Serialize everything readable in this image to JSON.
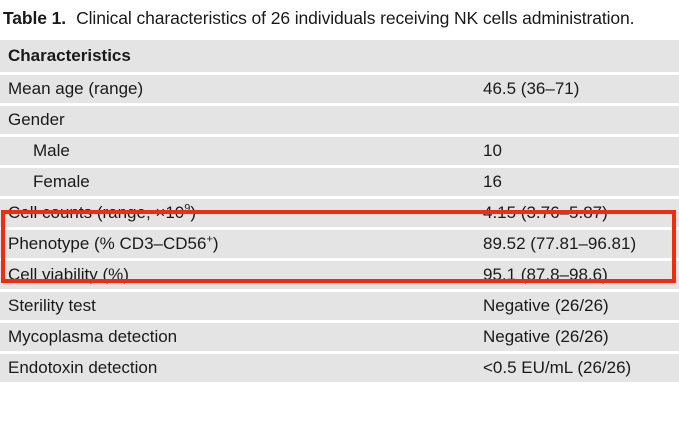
{
  "colors": {
    "row_bg": "#e4e4e4",
    "separator": "#ffffff",
    "highlight_box": "#ee2c10",
    "text": "#1a1a1a"
  },
  "title": {
    "label": "Table 1.",
    "text": "Clinical characteristics of 26 individuals receiving NK cells administration."
  },
  "table": {
    "header": "Characteristics",
    "rows": [
      {
        "label_parts": [
          {
            "text": "Mean age (range)"
          }
        ],
        "value": "46.5 (36–71)",
        "indent": false,
        "highlighted": false
      },
      {
        "label_parts": [
          {
            "text": "Gender"
          }
        ],
        "value": "",
        "indent": false,
        "highlighted": false
      },
      {
        "label_parts": [
          {
            "text": "Male"
          }
        ],
        "value": "10",
        "indent": true,
        "highlighted": false
      },
      {
        "label_parts": [
          {
            "text": "Female"
          }
        ],
        "value": "16",
        "indent": true,
        "highlighted": false
      },
      {
        "label_parts": [
          {
            "text": "Cell counts (range, ×10"
          },
          {
            "text": "9",
            "sup": true
          },
          {
            "text": ")"
          }
        ],
        "value": "4.15 (3.76–5.87)",
        "indent": false,
        "highlighted": true
      },
      {
        "label_parts": [
          {
            "text": "Phenotype (% CD3–CD56"
          },
          {
            "text": "+",
            "sup": true
          },
          {
            "text": ")"
          }
        ],
        "value": "89.52 (77.81–96.81)",
        "indent": false,
        "highlighted": true
      },
      {
        "label_parts": [
          {
            "text": "Cell viability (%)"
          }
        ],
        "value": "95.1 (87.8–98.6)",
        "indent": false,
        "highlighted": false
      },
      {
        "label_parts": [
          {
            "text": "Sterility test"
          }
        ],
        "value": "Negative (26/26)",
        "indent": false,
        "highlighted": false
      },
      {
        "label_parts": [
          {
            "text": "Mycoplasma detection"
          }
        ],
        "value": "Negative (26/26)",
        "indent": false,
        "highlighted": false
      },
      {
        "label_parts": [
          {
            "text": "Endotoxin detection"
          }
        ],
        "value": "<0.5 EU/mL (26/26)",
        "indent": false,
        "highlighted": false
      }
    ]
  }
}
